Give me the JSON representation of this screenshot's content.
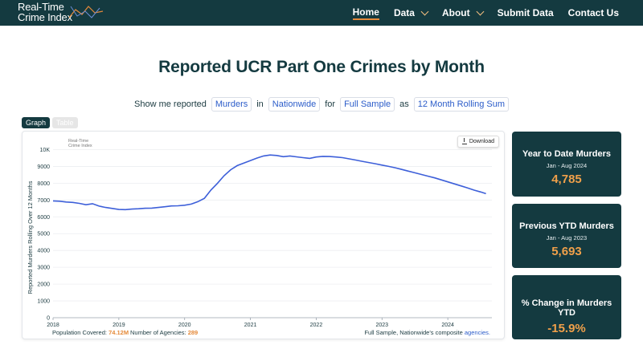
{
  "nav": {
    "logo_line1": "Real-Time",
    "logo_line2": "Crime Index",
    "items": [
      {
        "label": "Home",
        "active": true,
        "dropdown": false
      },
      {
        "label": "Data",
        "active": false,
        "dropdown": true
      },
      {
        "label": "About",
        "active": false,
        "dropdown": true
      },
      {
        "label": "Submit Data",
        "active": false,
        "dropdown": false
      },
      {
        "label": "Contact Us",
        "active": false,
        "dropdown": false
      }
    ]
  },
  "page": {
    "title": "Reported UCR Part One Crimes by Month"
  },
  "filter": {
    "prefix": "Show me reported",
    "crime": "Murders",
    "in_word": "in",
    "region": "Nationwide",
    "for_word": "for",
    "sample": "Full Sample",
    "as_word": "as",
    "measure": "12 Month Rolling Sum"
  },
  "toggle": {
    "graph": "Graph",
    "table": "Table"
  },
  "chart": {
    "download_label": "Download",
    "watermark_line1": "Real-Time",
    "watermark_line2": "Crime Index",
    "population_label": "Population Covered:",
    "population_value": "74.12M",
    "agencies_label": "Number of Agencies:",
    "agencies_value": "289",
    "note_text": "Full Sample, Nationwide's composite",
    "note_link": "agencies."
  },
  "chart_data": {
    "type": "line",
    "title": "",
    "xlabel": "",
    "ylabel": "Reported Murders Rolling Over 12 Months",
    "ylim": [
      0,
      10500
    ],
    "xlim": [
      2018.0,
      2024.67
    ],
    "yticks": [
      0,
      1000,
      2000,
      3000,
      4000,
      5000,
      6000,
      7000,
      8000,
      9000,
      10000
    ],
    "ytick_labels": [
      "0",
      "1000",
      "2000",
      "3000",
      "4000",
      "5000",
      "6000",
      "7000",
      "8000",
      "9000",
      "10K"
    ],
    "xticks": [
      2018,
      2019,
      2020,
      2021,
      2022,
      2023,
      2024
    ],
    "xtick_labels": [
      "2018",
      "2019",
      "2020",
      "2021",
      "2022",
      "2023",
      "2024"
    ],
    "grid": true,
    "series_color": "#3d5fd9",
    "x": [
      2018.0,
      2018.1,
      2018.2,
      2018.3,
      2018.4,
      2018.5,
      2018.6,
      2018.7,
      2018.8,
      2018.9,
      2019.0,
      2019.1,
      2019.2,
      2019.3,
      2019.4,
      2019.5,
      2019.6,
      2019.7,
      2019.8,
      2019.9,
      2020.0,
      2020.1,
      2020.2,
      2020.3,
      2020.4,
      2020.5,
      2020.6,
      2020.7,
      2020.8,
      2020.9,
      2021.0,
      2021.1,
      2021.2,
      2021.3,
      2021.4,
      2021.5,
      2021.6,
      2021.7,
      2021.8,
      2021.9,
      2022.0,
      2022.1,
      2022.2,
      2022.3,
      2022.4,
      2022.5,
      2022.6,
      2022.7,
      2022.8,
      2022.9,
      2023.0,
      2023.1,
      2023.2,
      2023.3,
      2023.4,
      2023.5,
      2023.6,
      2023.7,
      2023.8,
      2023.9,
      2024.0,
      2024.1,
      2024.2,
      2024.3,
      2024.4,
      2024.5,
      2024.58
    ],
    "values": [
      6950,
      6930,
      6880,
      6860,
      6800,
      6720,
      6780,
      6640,
      6560,
      6500,
      6440,
      6430,
      6460,
      6480,
      6510,
      6520,
      6560,
      6600,
      6650,
      6660,
      6690,
      6760,
      6900,
      7100,
      7600,
      8000,
      8450,
      8800,
      9050,
      9200,
      9350,
      9500,
      9620,
      9680,
      9650,
      9580,
      9620,
      9570,
      9520,
      9480,
      9560,
      9600,
      9590,
      9560,
      9520,
      9450,
      9380,
      9300,
      9230,
      9160,
      9080,
      9000,
      8920,
      8820,
      8720,
      8620,
      8520,
      8420,
      8320,
      8200,
      8080,
      7960,
      7840,
      7720,
      7590,
      7480,
      7380
    ]
  },
  "stats": [
    {
      "title": "Year to Date Murders",
      "sub": "Jan - Aug 2024",
      "value": "4,785"
    },
    {
      "title": "Previous YTD Murders",
      "sub": "Jan - Aug 2023",
      "value": "5,693"
    },
    {
      "title": "% Change in Murders YTD",
      "sub": "",
      "value": "-15.9%"
    }
  ]
}
